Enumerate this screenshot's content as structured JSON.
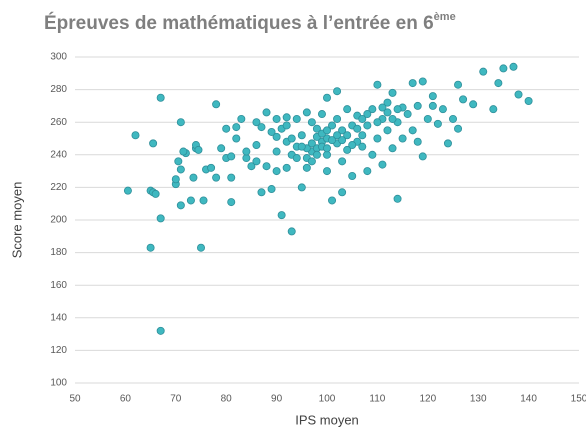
{
  "chart_data": {
    "type": "scatter",
    "title": "Épreuves de mathématiques à l’entrée en 6",
    "title_sup": "ème",
    "x_label": "IPS moyen",
    "y_label": "Score moyen",
    "xlim": [
      50,
      150
    ],
    "xticks": [
      50,
      60,
      70,
      80,
      90,
      100,
      110,
      120,
      130,
      140,
      150
    ],
    "ylim": [
      100,
      300
    ],
    "yticks": [
      100,
      120,
      140,
      160,
      180,
      200,
      220,
      240,
      260,
      280,
      300
    ],
    "grid": true,
    "color": "#3fb8c0",
    "series": [
      {
        "name": "Score moyen",
        "x": [
          62,
          60.5,
          65,
          65.5,
          66,
          65,
          67,
          67,
          67,
          65.5,
          70,
          70,
          70.5,
          71,
          71,
          71,
          72,
          71.5,
          73,
          73.5,
          74,
          74,
          74.5,
          75,
          75.5,
          76,
          77,
          78,
          78,
          79,
          80,
          80,
          81,
          81,
          81,
          82,
          82,
          83,
          84,
          84,
          85,
          86,
          86,
          86,
          87,
          87,
          88,
          88,
          89,
          90,
          90,
          90,
          91,
          92,
          92,
          92,
          93,
          93,
          94,
          94,
          95,
          95,
          96,
          96,
          97,
          97,
          98,
          98,
          99,
          99,
          100,
          100,
          100,
          100,
          101,
          101,
          102,
          102,
          102,
          103,
          103,
          103,
          104,
          104,
          105,
          105,
          106,
          106,
          107,
          107,
          108,
          108,
          109,
          109,
          110,
          110,
          111,
          111,
          112,
          112,
          113,
          113,
          114,
          114,
          115,
          115,
          116,
          117,
          117,
          118,
          118,
          119,
          119,
          120,
          121,
          121,
          122,
          123,
          124,
          125,
          126,
          126,
          127,
          129,
          131,
          133,
          134,
          135,
          137,
          138,
          140,
          96,
          97,
          98,
          99,
          100,
          101,
          96,
          97,
          98,
          99,
          100,
          95,
          94,
          93,
          102,
          103,
          104,
          105,
          106,
          107,
          108,
          110,
          111,
          112,
          113,
          114,
          89,
          90,
          91,
          92
        ],
        "values": [
          252,
          218,
          218,
          217,
          216,
          183,
          132,
          275,
          201,
          247,
          222,
          225,
          236,
          231,
          209,
          260,
          241,
          242,
          212,
          226,
          244,
          246,
          243,
          183,
          212,
          231,
          232,
          226,
          271,
          244,
          256,
          238,
          239,
          211,
          226,
          257,
          250,
          262,
          238,
          242,
          233,
          236,
          246,
          260,
          257,
          217,
          233,
          266,
          219,
          230,
          242,
          251,
          203,
          232,
          248,
          263,
          193,
          240,
          245,
          262,
          220,
          252,
          266,
          232,
          242,
          260,
          244,
          256,
          248,
          265,
          230,
          240,
          250,
          275,
          212,
          258,
          247,
          262,
          279,
          217,
          236,
          255,
          243,
          268,
          227,
          258,
          248,
          264,
          252,
          245,
          230,
          258,
          240,
          268,
          283,
          250,
          262,
          234,
          272,
          255,
          278,
          244,
          213,
          260,
          269,
          250,
          265,
          284,
          255,
          248,
          270,
          239,
          285,
          262,
          270,
          276,
          259,
          268,
          247,
          262,
          283,
          256,
          274,
          271,
          291,
          268,
          284,
          293,
          294,
          277,
          273,
          244,
          247,
          240,
          245,
          244,
          249,
          238,
          236,
          251,
          253,
          255,
          245,
          238,
          250,
          252,
          249,
          252,
          246,
          256,
          262,
          265,
          260,
          269,
          266,
          262,
          268,
          254,
          262,
          256,
          258
        ]
      }
    ]
  }
}
